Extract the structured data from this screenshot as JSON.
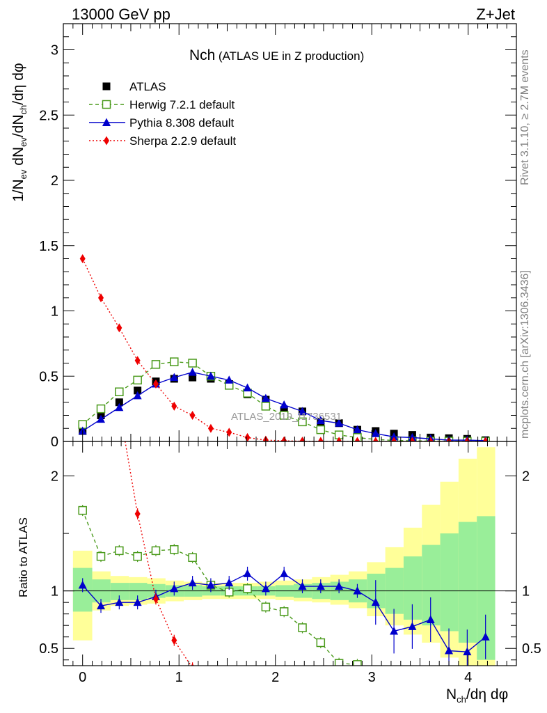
{
  "header": {
    "energy_label": "13000 GeV pp",
    "process_label": "Z+Jet",
    "plot_title": "Nch",
    "plot_subtitle": "(ATLAS UE in Z production)",
    "watermark": "ATLAS_2019_I1736531"
  },
  "side_labels": {
    "rivet": "Rivet 3.1.10, ≥ 2.7M events",
    "mcplots": "mcplots.cern.ch [arXiv:1306.3436]"
  },
  "legend": [
    {
      "name": "ATLAS",
      "color": "#000000",
      "marker": "square-filled",
      "line": "none"
    },
    {
      "name": "Herwig 7.2.1 default",
      "color": "#4a9a1b",
      "marker": "square-open",
      "line": "dashed"
    },
    {
      "name": "Pythia 8.308 default",
      "color": "#0000cc",
      "marker": "triangle",
      "line": "solid"
    },
    {
      "name": "Sherpa 2.2.9 default",
      "color": "#ee0000",
      "marker": "diamond",
      "line": "dotted"
    }
  ],
  "chart_data": [
    {
      "type": "scatter",
      "panel": "main",
      "title": "Nch (ATLAS UE in Z production)",
      "xlabel": "Nch/dη dφ",
      "ylabel": "1/Nev dNev/dNch/dη dφ",
      "xlim": [
        -0.2,
        4.5
      ],
      "ylim": [
        0,
        3.2
      ],
      "yticks": [
        "0",
        "0.5",
        "1",
        "1.5",
        "2",
        "2.5",
        "3"
      ],
      "xticks": [
        "0",
        "1",
        "2",
        "3",
        "4"
      ],
      "x": [
        0.0,
        0.19,
        0.38,
        0.57,
        0.76,
        0.95,
        1.14,
        1.33,
        1.52,
        1.71,
        1.9,
        2.09,
        2.28,
        2.47,
        2.66,
        2.85,
        3.04,
        3.23,
        3.42,
        3.61,
        3.8,
        3.99,
        4.18
      ],
      "series": [
        {
          "name": "ATLAS",
          "values": [
            0.08,
            0.2,
            0.3,
            0.39,
            0.46,
            0.48,
            0.49,
            0.48,
            0.44,
            0.36,
            0.32,
            0.24,
            0.23,
            0.15,
            0.14,
            0.09,
            0.08,
            0.06,
            0.05,
            0.03,
            0.025,
            0.02,
            0.01
          ]
        },
        {
          "name": "Herwig 7.2.1 default",
          "values": [
            0.13,
            0.25,
            0.38,
            0.47,
            0.59,
            0.61,
            0.6,
            0.5,
            0.43,
            0.37,
            0.27,
            0.2,
            0.15,
            0.09,
            0.05,
            0.03,
            0.015,
            0.008,
            0.005,
            0.003,
            0.002,
            0.001,
            0.001
          ]
        },
        {
          "name": "Pythia 8.308 default",
          "values": [
            0.08,
            0.17,
            0.26,
            0.35,
            0.44,
            0.49,
            0.53,
            0.5,
            0.47,
            0.41,
            0.33,
            0.28,
            0.23,
            0.16,
            0.14,
            0.09,
            0.06,
            0.035,
            0.03,
            0.02,
            0.01,
            0.01,
            0.006
          ]
        },
        {
          "name": "Sherpa 2.2.9 default",
          "values": [
            1.4,
            1.1,
            0.87,
            0.62,
            0.44,
            0.27,
            0.2,
            0.1,
            0.07,
            0.03,
            0.01,
            0.005,
            0.002,
            0.001,
            0.0005,
            0.0003,
            0.0002,
            0.0001,
            0.0001,
            0.0001,
            0.0001,
            0.0001,
            0.0001
          ]
        }
      ]
    },
    {
      "type": "scatter",
      "panel": "ratio",
      "xlabel": "Nch/dη dφ",
      "ylabel": "Ratio to ATLAS",
      "xlim": [
        -0.2,
        4.5
      ],
      "ylim": [
        0.35,
        2.3
      ],
      "yticks": [
        "0.5",
        "1",
        "2"
      ],
      "xticks": [
        "0",
        "1",
        "2",
        "3",
        "4"
      ],
      "x": [
        0.0,
        0.19,
        0.38,
        0.57,
        0.76,
        0.95,
        1.14,
        1.33,
        1.52,
        1.71,
        1.9,
        2.09,
        2.28,
        2.47,
        2.66,
        2.85,
        3.04,
        3.23,
        3.42,
        3.61,
        3.8,
        3.99,
        4.18
      ],
      "bin_edges": [
        -0.1,
        0.1,
        0.29,
        0.48,
        0.67,
        0.86,
        1.05,
        1.24,
        1.43,
        1.62,
        1.81,
        2.0,
        2.19,
        2.38,
        2.57,
        2.76,
        2.95,
        3.14,
        3.33,
        3.52,
        3.71,
        3.9,
        4.09,
        4.28
      ],
      "band_green_low": [
        0.82,
        0.9,
        0.92,
        0.92,
        0.94,
        0.95,
        0.95,
        0.96,
        0.96,
        0.96,
        0.96,
        0.95,
        0.94,
        0.93,
        0.92,
        0.9,
        0.85,
        0.8,
        0.75,
        0.7,
        0.65,
        0.55,
        0.4
      ],
      "band_green_high": [
        1.2,
        1.1,
        1.07,
        1.07,
        1.06,
        1.05,
        1.05,
        1.04,
        1.04,
        1.04,
        1.04,
        1.05,
        1.06,
        1.07,
        1.08,
        1.1,
        1.15,
        1.2,
        1.3,
        1.4,
        1.5,
        1.6,
        1.65
      ],
      "band_yellow_low": [
        0.57,
        0.83,
        0.87,
        0.88,
        0.89,
        0.91,
        0.92,
        0.93,
        0.93,
        0.93,
        0.93,
        0.92,
        0.91,
        0.9,
        0.88,
        0.85,
        0.78,
        0.7,
        0.62,
        0.55,
        0.42,
        0.35,
        0.3
      ],
      "band_yellow_high": [
        1.35,
        1.17,
        1.13,
        1.12,
        1.11,
        1.09,
        1.08,
        1.07,
        1.07,
        1.07,
        1.08,
        1.09,
        1.1,
        1.12,
        1.14,
        1.17,
        1.25,
        1.38,
        1.55,
        1.75,
        1.95,
        2.15,
        2.25
      ],
      "series": [
        {
          "name": "Herwig 7.2.1 default",
          "values": [
            1.7,
            1.3,
            1.35,
            1.3,
            1.35,
            1.36,
            1.29,
            1.05,
            0.99,
            1.02,
            0.86,
            0.82,
            0.68,
            0.55,
            0.37,
            0.36,
            null,
            null,
            null,
            null,
            null,
            null,
            null
          ]
        },
        {
          "name": "Pythia 8.308 default",
          "values": [
            1.05,
            0.87,
            0.9,
            0.9,
            0.95,
            1.02,
            1.07,
            1.05,
            1.07,
            1.15,
            1.02,
            1.15,
            1.04,
            1.04,
            1.04,
            1.0,
            0.9,
            0.65,
            0.69,
            0.75,
            0.48,
            0.47,
            0.6
          ]
        },
        {
          "name": "Sherpa 2.2.9 default",
          "values": [
            null,
            null,
            null,
            1.67,
            0.93,
            0.57,
            0.33,
            null,
            null,
            null,
            null,
            null,
            null,
            null,
            null,
            null,
            null,
            null,
            null,
            null,
            null,
            null,
            null
          ]
        }
      ]
    }
  ]
}
